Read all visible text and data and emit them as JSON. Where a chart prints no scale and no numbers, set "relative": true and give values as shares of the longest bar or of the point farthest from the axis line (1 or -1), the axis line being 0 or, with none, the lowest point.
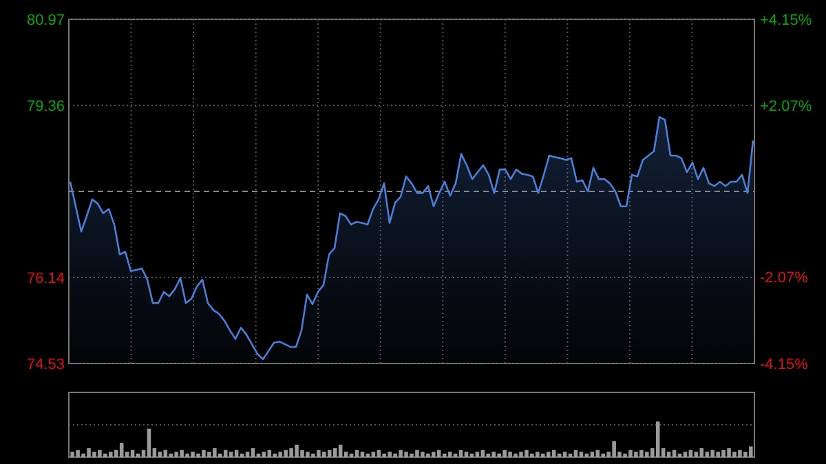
{
  "chart_data": [
    {
      "type": "area",
      "categories": [
        null,
        null,
        null,
        null,
        null,
        null,
        null,
        null,
        null,
        null,
        null,
        null,
        null,
        null,
        null,
        null,
        null,
        null,
        null,
        null,
        null,
        null,
        null,
        null,
        null,
        null,
        null,
        null,
        null,
        null,
        null,
        null,
        null,
        null,
        null,
        null,
        null,
        null,
        null,
        null,
        null,
        null,
        null,
        null,
        null,
        null,
        null,
        null,
        null,
        null,
        null,
        null,
        null,
        null,
        null,
        null,
        null,
        null,
        null,
        null,
        null,
        null,
        null,
        null,
        null,
        null,
        null,
        null,
        null,
        null,
        null,
        null,
        null,
        null,
        null,
        null,
        null,
        null,
        null,
        null,
        null,
        null,
        null,
        null,
        null,
        null,
        null,
        null,
        null,
        null,
        null,
        null,
        null,
        null,
        null,
        null,
        null,
        null,
        null,
        null,
        null,
        null,
        null,
        null,
        null,
        null,
        null,
        null,
        null,
        null,
        null,
        null,
        null,
        null,
        null,
        null,
        null,
        null,
        null,
        null,
        null,
        null,
        null,
        null,
        null
      ],
      "series": [
        {
          "color": "#4a7fd8",
          "values": [
            77.93,
            77.47,
            77.0,
            77.29,
            77.6,
            77.52,
            77.34,
            77.42,
            77.13,
            76.57,
            76.62,
            76.26,
            76.28,
            76.31,
            76.1,
            75.66,
            75.66,
            75.87,
            75.79,
            75.92,
            76.13,
            75.66,
            75.74,
            75.97,
            76.1,
            75.66,
            75.53,
            75.46,
            75.33,
            75.15,
            74.99,
            75.2,
            75.07,
            74.89,
            74.71,
            74.61,
            74.76,
            74.92,
            74.94,
            74.89,
            74.84,
            74.84,
            75.15,
            75.82,
            75.64,
            75.87,
            76.0,
            76.57,
            76.69,
            77.34,
            77.29,
            77.13,
            77.18,
            77.16,
            77.13,
            77.42,
            77.6,
            77.9,
            77.16,
            77.54,
            77.65,
            78.03,
            77.9,
            77.72,
            77.72,
            77.85,
            77.47,
            77.72,
            77.93,
            77.67,
            77.9,
            78.45,
            78.24,
            77.98,
            78.11,
            78.24,
            78.06,
            77.72,
            78.16,
            78.16,
            77.98,
            78.16,
            78.08,
            78.06,
            78.03,
            77.72,
            78.06,
            78.42,
            78.39,
            78.37,
            78.34,
            78.37,
            77.93,
            77.96,
            77.75,
            78.19,
            77.98,
            77.98,
            77.9,
            77.75,
            77.47,
            77.47,
            78.06,
            78.03,
            78.34,
            78.42,
            78.5,
            79.14,
            79.09,
            78.42,
            78.42,
            78.37,
            78.11,
            78.29,
            77.98,
            78.19,
            77.9,
            77.85,
            77.93,
            77.85,
            77.93,
            77.93,
            78.06,
            77.72,
            78.7
          ]
        }
      ],
      "ylim": [
        74.53,
        80.97
      ],
      "yticks": [
        74.53,
        76.14,
        79.36,
        80.97
      ],
      "y2lim": [
        -4.15,
        4.15
      ],
      "y2ticks": [
        {
          "value": -4.15,
          "label": "-4.15%"
        },
        {
          "value": -2.07,
          "label": "-2.07%"
        },
        {
          "value": 2.07,
          "label": "+2.07%"
        },
        {
          "value": 4.15,
          "label": "+4.15%"
        }
      ],
      "ref_lines": [
        {
          "axis": "y",
          "value": 77.75,
          "line_style": "dashed",
          "color": "#888888"
        }
      ],
      "grid": true
    },
    {
      "type": "bar",
      "relative": true,
      "grid": true,
      "categories": [
        null,
        null,
        null,
        null,
        null,
        null,
        null,
        null,
        null,
        null,
        null,
        null,
        null,
        null,
        null,
        null,
        null,
        null,
        null,
        null,
        null,
        null,
        null,
        null,
        null,
        null,
        null,
        null,
        null,
        null,
        null,
        null,
        null,
        null,
        null,
        null,
        null,
        null,
        null,
        null,
        null,
        null,
        null,
        null,
        null,
        null,
        null,
        null,
        null,
        null,
        null,
        null,
        null,
        null,
        null,
        null,
        null,
        null,
        null,
        null,
        null,
        null,
        null,
        null,
        null,
        null,
        null,
        null,
        null,
        null,
        null,
        null,
        null,
        null,
        null,
        null,
        null,
        null,
        null,
        null,
        null,
        null,
        null,
        null,
        null,
        null,
        null,
        null,
        null,
        null,
        null,
        null,
        null,
        null,
        null,
        null,
        null,
        null,
        null,
        null,
        null,
        null,
        null,
        null,
        null,
        null,
        null,
        null,
        null,
        null,
        null,
        null,
        null,
        null,
        null,
        null,
        null,
        null,
        null,
        null,
        null,
        null,
        null,
        null,
        null
      ],
      "series": [
        {
          "color": "#9a9a9a",
          "values": [
            0.15,
            0.2,
            0.1,
            0.25,
            0.15,
            0.2,
            0.1,
            0.15,
            0.2,
            0.4,
            0.15,
            0.2,
            0.1,
            0.2,
            0.8,
            0.25,
            0.15,
            0.2,
            0.1,
            0.15,
            0.2,
            0.1,
            0.15,
            0.1,
            0.2,
            0.15,
            0.25,
            0.1,
            0.2,
            0.15,
            0.2,
            0.1,
            0.15,
            0.25,
            0.1,
            0.15,
            0.2,
            0.1,
            0.15,
            0.2,
            0.25,
            0.35,
            0.2,
            0.15,
            0.1,
            0.2,
            0.15,
            0.2,
            0.25,
            0.35,
            0.15,
            0.1,
            0.2,
            0.15,
            0.1,
            0.15,
            0.2,
            0.1,
            0.15,
            0.1,
            0.2,
            0.15,
            0.1,
            0.2,
            0.15,
            0.1,
            0.15,
            0.2,
            0.1,
            0.15,
            0.1,
            0.2,
            0.15,
            0.1,
            0.15,
            0.2,
            0.1,
            0.15,
            0.1,
            0.2,
            0.15,
            0.1,
            0.15,
            0.2,
            0.1,
            0.15,
            0.1,
            0.15,
            0.2,
            0.1,
            0.15,
            0.1,
            0.2,
            0.15,
            0.1,
            0.15,
            0.2,
            0.1,
            0.15,
            0.45,
            0.15,
            0.1,
            0.2,
            0.15,
            0.2,
            0.15,
            0.25,
            1.0,
            0.25,
            0.15,
            0.2,
            0.1,
            0.15,
            0.2,
            0.15,
            0.25,
            0.15,
            0.2,
            0.15,
            0.2,
            0.25,
            0.15,
            0.2,
            0.15,
            0.3
          ]
        }
      ]
    }
  ]
}
